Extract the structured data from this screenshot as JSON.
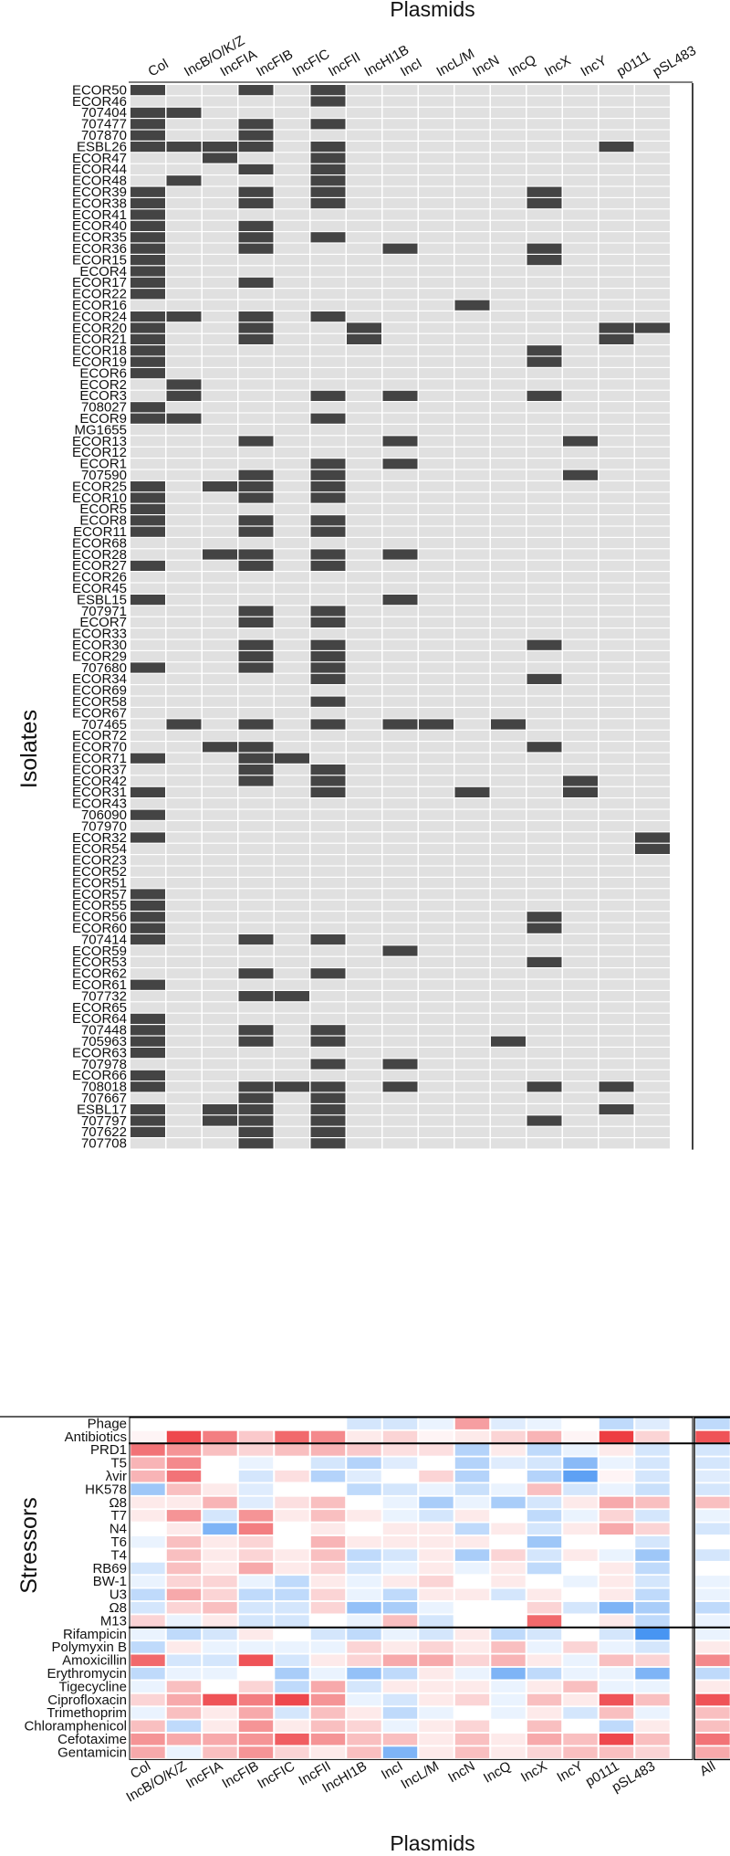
{
  "chart_data": [
    {
      "type": "heatmap",
      "title": "",
      "xlabel": "Plasmids",
      "ylabel": "Isolates",
      "columns": [
        "Col",
        "IncB/O/K/Z",
        "IncFIA",
        "IncFIB",
        "IncFIC",
        "IncFII",
        "IncHI1B",
        "IncI",
        "IncL/M",
        "IncN",
        "IncQ",
        "IncX",
        "IncY",
        "p0111",
        "pSL483"
      ],
      "value_meaning": {
        "1": "present (dark)",
        "0": "absent (grey)"
      },
      "colors": {
        "present": "#444444",
        "absent": "#e0e0e0"
      },
      "rows": [
        {
          "label": "ECOR50",
          "v": "100101000000000"
        },
        {
          "label": "ECOR46",
          "v": "000001000000000"
        },
        {
          "label": "707404",
          "v": "110000000000000"
        },
        {
          "label": "707477",
          "v": "100101000000000"
        },
        {
          "label": "707870",
          "v": "100100000000000"
        },
        {
          "label": "ESBL26",
          "v": "111101000000010"
        },
        {
          "label": "ECOR47",
          "v": "001001000000000"
        },
        {
          "label": "ECOR44",
          "v": "000101000000000"
        },
        {
          "label": "ECOR48",
          "v": "010001000000000"
        },
        {
          "label": "ECOR39",
          "v": "100101000001000"
        },
        {
          "label": "ECOR38",
          "v": "100101000001000"
        },
        {
          "label": "ECOR41",
          "v": "100000000000000"
        },
        {
          "label": "ECOR40",
          "v": "100100000000000"
        },
        {
          "label": "ECOR35",
          "v": "100101000000000"
        },
        {
          "label": "ECOR36",
          "v": "100100010001000"
        },
        {
          "label": "ECOR15",
          "v": "100000000001000"
        },
        {
          "label": "ECOR4",
          "v": "100000000000000"
        },
        {
          "label": "ECOR17",
          "v": "100100000000000"
        },
        {
          "label": "ECOR22",
          "v": "100000000000000"
        },
        {
          "label": "ECOR16",
          "v": "000000000100000"
        },
        {
          "label": "ECOR24",
          "v": "110101000000000"
        },
        {
          "label": "ECOR20",
          "v": "100100100000011"
        },
        {
          "label": "ECOR21",
          "v": "100100100000010"
        },
        {
          "label": "ECOR18",
          "v": "100000000001000"
        },
        {
          "label": "ECOR19",
          "v": "100000000001000"
        },
        {
          "label": "ECOR6",
          "v": "100000000000000"
        },
        {
          "label": "ECOR2",
          "v": "010000000000000"
        },
        {
          "label": "ECOR3",
          "v": "010001010001000"
        },
        {
          "label": "708027",
          "v": "100000000000000"
        },
        {
          "label": "ECOR9",
          "v": "110001000000000"
        },
        {
          "label": "MG1655",
          "v": "000000000000000"
        },
        {
          "label": "ECOR13",
          "v": "000100010000100"
        },
        {
          "label": "ECOR12",
          "v": "000000000000000"
        },
        {
          "label": "ECOR1",
          "v": "000001010000000"
        },
        {
          "label": "707590",
          "v": "000101000000100"
        },
        {
          "label": "ECOR25",
          "v": "101101000000000"
        },
        {
          "label": "ECOR10",
          "v": "100101000000000"
        },
        {
          "label": "ECOR5",
          "v": "100000000000000"
        },
        {
          "label": "ECOR8",
          "v": "100101000000000"
        },
        {
          "label": "ECOR11",
          "v": "100101000000000"
        },
        {
          "label": "ECOR68",
          "v": "000000000000000"
        },
        {
          "label": "ECOR28",
          "v": "001101010000000"
        },
        {
          "label": "ECOR27",
          "v": "100101000000000"
        },
        {
          "label": "ECOR26",
          "v": "000000000000000"
        },
        {
          "label": "ECOR45",
          "v": "000000000000000"
        },
        {
          "label": "ESBL15",
          "v": "100000010000000"
        },
        {
          "label": "707971",
          "v": "000101000000000"
        },
        {
          "label": "ECOR7",
          "v": "000101000000000"
        },
        {
          "label": "ECOR33",
          "v": "000000000000000"
        },
        {
          "label": "ECOR30",
          "v": "000101000001000"
        },
        {
          "label": "ECOR29",
          "v": "000101000000000"
        },
        {
          "label": "707680",
          "v": "100101000000000"
        },
        {
          "label": "ECOR34",
          "v": "000001000001000"
        },
        {
          "label": "ECOR69",
          "v": "000000000000000"
        },
        {
          "label": "ECOR58",
          "v": "000001000000000"
        },
        {
          "label": "ECOR67",
          "v": "000000000000000"
        },
        {
          "label": "707465",
          "v": "010101011010000"
        },
        {
          "label": "ECOR72",
          "v": "000000000000000"
        },
        {
          "label": "ECOR70",
          "v": "001100000001000"
        },
        {
          "label": "ECOR71",
          "v": "100110000000000"
        },
        {
          "label": "ECOR37",
          "v": "000101000000000"
        },
        {
          "label": "ECOR42",
          "v": "000101000000100"
        },
        {
          "label": "ECOR31",
          "v": "100001000100100"
        },
        {
          "label": "ECOR43",
          "v": "000000000000000"
        },
        {
          "label": "706090",
          "v": "100000000000000"
        },
        {
          "label": "707970",
          "v": "000000000000000"
        },
        {
          "label": "ECOR32",
          "v": "100000000000001"
        },
        {
          "label": "ECOR54",
          "v": "000000000000001"
        },
        {
          "label": "ECOR23",
          "v": "000000000000000"
        },
        {
          "label": "ECOR52",
          "v": "000000000000000"
        },
        {
          "label": "ECOR51",
          "v": "000000000000000"
        },
        {
          "label": "ECOR57",
          "v": "100000000000000"
        },
        {
          "label": "ECOR55",
          "v": "100000000000000"
        },
        {
          "label": "ECOR56",
          "v": "100000000001000"
        },
        {
          "label": "ECOR60",
          "v": "100000000001000"
        },
        {
          "label": "707414",
          "v": "100101000000000"
        },
        {
          "label": "ECOR59",
          "v": "000000010000000"
        },
        {
          "label": "ECOR53",
          "v": "000000000001000"
        },
        {
          "label": "ECOR62",
          "v": "000101000000000"
        },
        {
          "label": "ECOR61",
          "v": "100000000000000"
        },
        {
          "label": "707732",
          "v": "000110000000000"
        },
        {
          "label": "ECOR65",
          "v": "000000000000000"
        },
        {
          "label": "ECOR64",
          "v": "100000000000000"
        },
        {
          "label": "707448",
          "v": "100101000000000"
        },
        {
          "label": "705963",
          "v": "100101000010000"
        },
        {
          "label": "ECOR63",
          "v": "100000000000000"
        },
        {
          "label": "707978",
          "v": "000001010000000"
        },
        {
          "label": "ECOR66",
          "v": "100000000000000"
        },
        {
          "label": "708018",
          "v": "100111010001010"
        },
        {
          "label": "707667",
          "v": "000101000000000"
        },
        {
          "label": "ESBL17",
          "v": "101101000000010"
        },
        {
          "label": "707797",
          "v": "101101000001000"
        },
        {
          "label": "707622",
          "v": "100101000000000"
        },
        {
          "label": "707708",
          "v": "000101000000000"
        }
      ]
    },
    {
      "type": "heatmap",
      "title": "",
      "xlabel": "Plasmids",
      "ylabel": "Stressors",
      "columns": [
        "Col",
        "IncB/O/K/Z",
        "IncFIA",
        "IncFIB",
        "IncFIC",
        "IncFII",
        "IncHI1B",
        "IncI",
        "IncL/M",
        "IncN",
        "IncQ",
        "IncX",
        "IncY",
        "p0111",
        "pSL483",
        "All"
      ],
      "value_scale": "diverging: negative = blue, positive = red (relative effect, -1 to 1)",
      "summary_rows": [
        {
          "label": "Phage",
          "v": [
            0,
            0,
            0,
            0,
            0,
            0,
            -0.2,
            -0.2,
            -0.1,
            0.45,
            -0.15,
            -0.1,
            0,
            -0.3,
            -0.15,
            -0.3
          ]
        },
        {
          "label": "Antibiotics",
          "v": [
            0.05,
            0.85,
            0.6,
            0.25,
            0.7,
            0.55,
            0.1,
            0.2,
            0.05,
            0.1,
            0.2,
            0.35,
            0.05,
            0.9,
            0.2,
            0.8
          ]
        }
      ],
      "phage_rows": [
        {
          "label": "PRD1",
          "v": [
            0.65,
            0.5,
            0.3,
            0.2,
            0.3,
            0.35,
            0.25,
            0.15,
            0.15,
            -0.35,
            0.1,
            -0.3,
            -0.1,
            0.1,
            -0.2,
            -0.2
          ]
        },
        {
          "label": "T5",
          "v": [
            0.35,
            0.55,
            0,
            -0.1,
            0,
            -0.2,
            -0.35,
            -0.15,
            0,
            -0.35,
            -0.15,
            -0.2,
            -0.55,
            -0.1,
            -0.2,
            -0.2
          ]
        },
        {
          "label": "λvir",
          "v": [
            0.35,
            0.65,
            0,
            -0.2,
            0.15,
            -0.35,
            -0.15,
            0,
            0.2,
            -0.35,
            0,
            -0.35,
            -0.75,
            0.05,
            -0.2,
            -0.15
          ]
        },
        {
          "label": "HK578",
          "v": [
            -0.45,
            0.3,
            0.1,
            -0.15,
            0,
            0,
            -0.3,
            -0.2,
            -0.1,
            -0.25,
            -0.1,
            0.3,
            -0.2,
            -0.1,
            -0.25,
            -0.2
          ]
        },
        {
          "label": "Ω8",
          "v": [
            0.1,
            0.1,
            0.35,
            -0.15,
            0.15,
            0.3,
            0,
            -0.1,
            -0.4,
            -0.1,
            -0.4,
            -0.2,
            0.1,
            0.4,
            0.3,
            0.3
          ]
        },
        {
          "label": "T7",
          "v": [
            0.1,
            0.5,
            -0.2,
            0.5,
            0.1,
            0.3,
            0.1,
            -0.1,
            -0.2,
            0.1,
            0,
            -0.3,
            -0.1,
            0.2,
            -0.2,
            -0.1
          ]
        },
        {
          "label": "N4",
          "v": [
            0,
            0.1,
            -0.6,
            0.6,
            0,
            0.1,
            0,
            0.1,
            0.1,
            -0.3,
            0.1,
            -0.2,
            0.1,
            0.4,
            0.2,
            -0.2
          ]
        },
        {
          "label": "T6",
          "v": [
            -0.1,
            0.3,
            0.1,
            0.2,
            0,
            0.35,
            0.1,
            0.1,
            0.1,
            0.1,
            0,
            -0.45,
            0,
            0,
            -0.2,
            0
          ]
        },
        {
          "label": "T4",
          "v": [
            0,
            0.3,
            0.1,
            0.2,
            0.1,
            0.3,
            -0.3,
            -0.2,
            0.1,
            -0.4,
            0.2,
            -0.2,
            0.1,
            -0.1,
            -0.45,
            -0.2
          ]
        },
        {
          "label": "RB69",
          "v": [
            -0.2,
            0.3,
            0.1,
            0.4,
            0.1,
            0.2,
            -0.2,
            -0.1,
            0.1,
            -0.1,
            0.1,
            -0.3,
            0,
            0.1,
            -0.3,
            0
          ]
        },
        {
          "label": "BW-1",
          "v": [
            -0.1,
            0.2,
            0.2,
            -0.1,
            -0.3,
            0.1,
            -0.1,
            0.1,
            0.2,
            0,
            0.1,
            0,
            -0.1,
            0.1,
            -0.2,
            -0.1
          ]
        },
        {
          "label": "U3",
          "v": [
            -0.3,
            0.4,
            0.2,
            -0.3,
            -0.3,
            0.2,
            -0.1,
            -0.3,
            0.1,
            0.1,
            -0.2,
            0.1,
            0,
            0.1,
            -0.3,
            -0.1
          ]
        },
        {
          "label": "Ω8",
          "v": [
            -0.2,
            0.2,
            0.3,
            -0.2,
            -0.2,
            0.2,
            -0.5,
            -0.4,
            -0.1,
            0,
            0,
            0.2,
            -0.2,
            -0.6,
            -0.4,
            -0.3
          ]
        },
        {
          "label": "M13",
          "v": [
            0.2,
            -0.1,
            0.1,
            -0.2,
            -0.2,
            0,
            -0.1,
            0.3,
            -0.2,
            0,
            0,
            0.7,
            0,
            0.1,
            -0.3,
            -0.1
          ]
        }
      ],
      "antibiotic_rows": [
        {
          "label": "Rifampicin",
          "v": [
            -0.1,
            -0.3,
            -0.2,
            0.1,
            0,
            -0.2,
            -0.3,
            -0.1,
            -0.2,
            0.1,
            -0.3,
            -0.2,
            0,
            -0.2,
            -0.85,
            -0.1
          ]
        },
        {
          "label": "Polymyxin B",
          "v": [
            -0.3,
            0.1,
            -0.1,
            -0.1,
            -0.1,
            -0.1,
            0.2,
            0.1,
            0.2,
            0.1,
            0.3,
            -0.1,
            0.2,
            -0.1,
            -0.2,
            0.1
          ]
        },
        {
          "label": "Amoxicillin",
          "v": [
            0.7,
            -0.2,
            -0.2,
            0.8,
            -0.2,
            0.1,
            0.2,
            0.4,
            0.4,
            0.2,
            0.35,
            0.1,
            -0.1,
            0.3,
            0.2,
            0.55
          ]
        },
        {
          "label": "Erythromycin",
          "v": [
            -0.3,
            -0.1,
            -0.1,
            0,
            -0.4,
            -0.1,
            -0.5,
            -0.3,
            0.1,
            -0.1,
            -0.6,
            -0.3,
            -0.1,
            -0.1,
            -0.6,
            -0.3
          ]
        },
        {
          "label": "Tigecycline",
          "v": [
            -0.1,
            0.3,
            0,
            0.2,
            -0.3,
            0.4,
            -0.2,
            0.1,
            0.1,
            0.1,
            -0.1,
            0.1,
            0.3,
            -0.1,
            -0.1,
            0.1
          ]
        },
        {
          "label": "Ciprofloxacin",
          "v": [
            0.2,
            0.4,
            0.8,
            0.6,
            0.85,
            0.5,
            -0.1,
            -0.2,
            0.1,
            0.2,
            -0.1,
            0.3,
            0.1,
            0.8,
            0.3,
            0.8
          ]
        },
        {
          "label": "Trimethoprim",
          "v": [
            -0.1,
            0.3,
            0.1,
            0.4,
            -0.2,
            0.3,
            0.1,
            -0.3,
            -0.1,
            0,
            -0.1,
            0.1,
            -0.2,
            0.3,
            -0.1,
            0.3
          ]
        },
        {
          "label": "Chloramphenicol",
          "v": [
            0.3,
            -0.3,
            0.1,
            0.5,
            0.1,
            0.3,
            0.2,
            -0.1,
            0.1,
            0.2,
            0,
            0.3,
            0,
            -0.3,
            0.1,
            0.3
          ]
        },
        {
          "label": "Cefotaxime",
          "v": [
            0.5,
            0.4,
            0.4,
            0.5,
            0.75,
            0.5,
            0.3,
            0.3,
            0.1,
            0.3,
            0.1,
            0.4,
            0.3,
            0.85,
            0.3,
            0.65
          ]
        },
        {
          "label": "Gentamicin",
          "v": [
            0.4,
            -0.1,
            0.3,
            0.5,
            0.2,
            0.1,
            0.3,
            -0.6,
            0.1,
            0.3,
            0.1,
            0.2,
            0.3,
            0.3,
            0.2,
            0.4
          ]
        }
      ]
    }
  ]
}
